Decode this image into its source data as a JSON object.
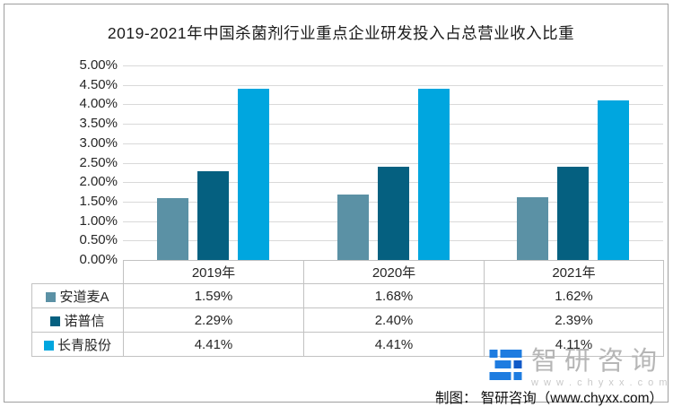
{
  "title": "2019-2021年中国杀菌剂行业重点企业研发投入占总营业收入比重",
  "chart_data": {
    "type": "bar",
    "title": "2019-2021年中国杀菌剂行业重点企业研发投入占总营业收入比重",
    "categories": [
      "2019年",
      "2020年",
      "2021年"
    ],
    "series": [
      {
        "name": "安道麦A",
        "color": "#5b91a5",
        "values": [
          1.59,
          1.68,
          1.62
        ]
      },
      {
        "name": "诺普信",
        "color": "#056080",
        "values": [
          2.29,
          2.4,
          2.39
        ]
      },
      {
        "name": "长青股份",
        "color": "#00a6df",
        "values": [
          4.41,
          4.41,
          4.11
        ]
      }
    ],
    "value_suffix": "%",
    "value_decimals": 2,
    "ylim": [
      0,
      5
    ],
    "y_tick_labels": [
      "5.00%",
      "4.50%",
      "4.00%",
      "3.50%",
      "3.00%",
      "2.50%",
      "2.00%",
      "1.50%",
      "1.00%",
      "0.50%",
      "0.00%"
    ],
    "grid": true,
    "legend_position": "table-rows-left",
    "colors": {
      "gridline": "#d9d9d9",
      "table_border": "#c2c2c2",
      "axis_text": "#262626",
      "frame_border": "#9e9e9e"
    }
  },
  "watermark": {
    "brand": "智研咨询",
    "domain_spaced": "w w w . c h y x x . c o m",
    "logo_blue": "#1e7ce0",
    "logo_blue_dark": "#1059c8",
    "text_color": "#b6b6b6"
  },
  "footer": {
    "credit": "制图： 智研咨询（www.chyxx.com）"
  }
}
